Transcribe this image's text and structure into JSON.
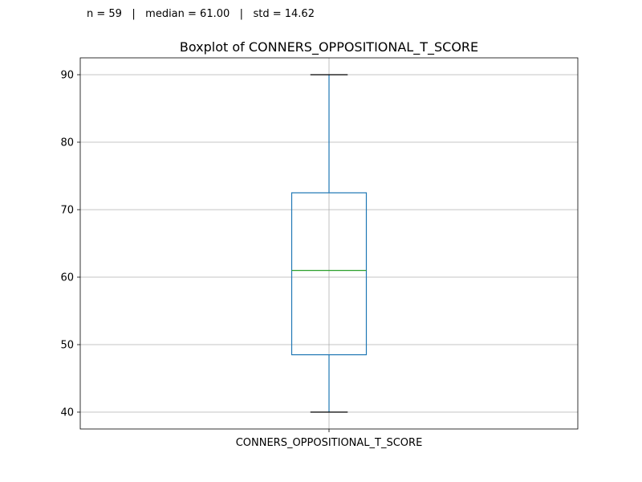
{
  "stats": {
    "n": "n = 59",
    "median": "median = 61.00",
    "std": "std = 14.62",
    "separator": "|"
  },
  "chart_data": {
    "type": "box",
    "title": "Boxplot of CONNERS_OPPOSITIONAL_T_SCORE",
    "xlabel": "",
    "ylabel": "",
    "categories": [
      "CONNERS_OPPOSITIONAL_T_SCORE"
    ],
    "series": [
      {
        "whisker_low": 40,
        "q1": 48.5,
        "median": 61,
        "q3": 72.5,
        "whisker_high": 90
      }
    ],
    "ylim": [
      37.5,
      92.5
    ],
    "yticks": [
      40,
      50,
      60,
      70,
      80,
      90
    ],
    "grid": true,
    "colors": {
      "box": "#1f77b4",
      "median": "#2ca02c",
      "caps": "#000000",
      "grid": "#b0b0b0",
      "axes": "#000000"
    }
  }
}
